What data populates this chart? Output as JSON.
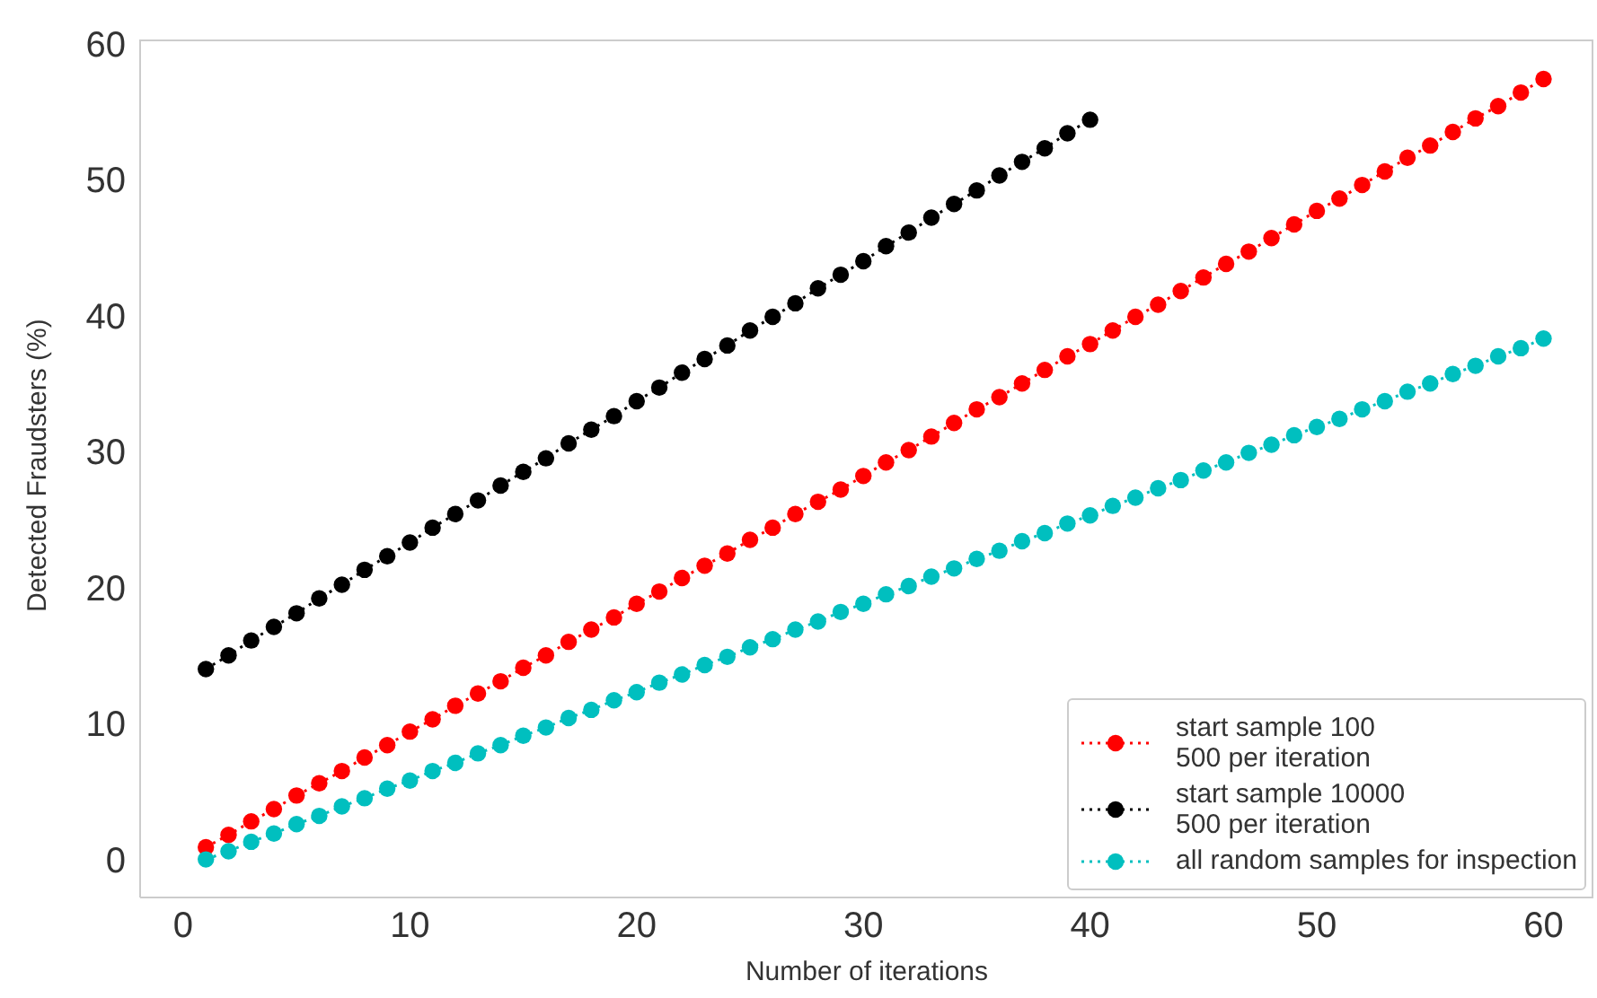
{
  "chart_data": {
    "type": "line",
    "xlabel": "Number of iterations",
    "ylabel": "Detected Fraudsters (%)",
    "x": [
      1,
      2,
      3,
      4,
      5,
      6,
      7,
      8,
      9,
      10,
      11,
      12,
      13,
      14,
      15,
      16,
      17,
      18,
      19,
      20,
      21,
      22,
      23,
      24,
      25,
      26,
      27,
      28,
      29,
      30,
      31,
      32,
      33,
      34,
      35,
      36,
      37,
      38,
      39,
      40,
      41,
      42,
      43,
      44,
      45,
      46,
      47,
      48,
      49,
      50,
      51,
      52,
      53,
      54,
      55,
      56,
      57,
      58,
      59,
      60
    ],
    "series": [
      {
        "name": "start sample 100\n500 per iteration",
        "color": "#ff0000",
        "values": [
          0.9,
          1.8,
          2.8,
          3.7,
          4.7,
          5.6,
          6.5,
          7.5,
          8.4,
          9.4,
          10.3,
          11.3,
          12.2,
          13.1,
          14.1,
          15.0,
          16.0,
          16.9,
          17.8,
          18.8,
          19.7,
          20.7,
          21.6,
          22.5,
          23.5,
          24.4,
          25.4,
          26.3,
          27.2,
          28.2,
          29.2,
          30.1,
          31.1,
          32.1,
          33.1,
          34.0,
          35.0,
          36.0,
          37.0,
          37.9,
          38.9,
          39.9,
          40.8,
          41.8,
          42.8,
          43.8,
          44.7,
          45.7,
          46.7,
          47.7,
          48.6,
          49.6,
          50.6,
          51.6,
          52.5,
          53.5,
          54.5,
          55.4,
          56.4,
          57.4
        ]
      },
      {
        "name": "start sample 10000\n500 per iteration",
        "color": "#000000",
        "x": [
          1,
          2,
          3,
          4,
          5,
          6,
          7,
          8,
          9,
          10,
          11,
          12,
          13,
          14,
          15,
          16,
          17,
          18,
          19,
          20,
          21,
          22,
          23,
          24,
          25,
          26,
          27,
          28,
          29,
          30,
          31,
          32,
          33,
          34,
          35,
          36,
          37,
          38,
          39,
          40
        ],
        "values": [
          14.0,
          15.0,
          16.1,
          17.1,
          18.1,
          19.2,
          20.2,
          21.3,
          22.3,
          23.3,
          24.4,
          25.4,
          26.4,
          27.5,
          28.5,
          29.5,
          30.6,
          31.6,
          32.6,
          33.7,
          34.7,
          35.8,
          36.8,
          37.8,
          38.9,
          39.9,
          40.9,
          42.0,
          43.0,
          44.0,
          45.1,
          46.1,
          47.2,
          48.2,
          49.2,
          50.3,
          51.3,
          52.3,
          53.4,
          54.4
        ]
      },
      {
        "name": "all random samples for inspection",
        "color": "#00bfbf",
        "values": [
          0.0,
          0.6,
          1.3,
          1.9,
          2.6,
          3.2,
          3.9,
          4.5,
          5.2,
          5.8,
          6.5,
          7.1,
          7.8,
          8.4,
          9.1,
          9.7,
          10.4,
          11.0,
          11.7,
          12.3,
          13.0,
          13.6,
          14.3,
          14.9,
          15.6,
          16.2,
          16.9,
          17.5,
          18.2,
          18.8,
          19.5,
          20.1,
          20.8,
          21.4,
          22.1,
          22.7,
          23.4,
          24.0,
          24.7,
          25.3,
          26.0,
          26.6,
          27.3,
          27.9,
          28.6,
          29.2,
          29.9,
          30.5,
          31.2,
          31.8,
          32.4,
          33.1,
          33.7,
          34.4,
          35.0,
          35.7,
          36.3,
          37.0,
          37.6,
          38.3
        ]
      }
    ],
    "xlim": [
      -1.9,
      62.2
    ],
    "xticks": [
      0,
      10,
      20,
      30,
      40,
      50,
      60
    ],
    "ylim": [
      -2.8,
      60.3
    ],
    "yticks": [
      0,
      10,
      20,
      30,
      40,
      50,
      60
    ],
    "grid": false,
    "legend": "bottom right",
    "marker": "circle",
    "line_style": "dotted"
  }
}
